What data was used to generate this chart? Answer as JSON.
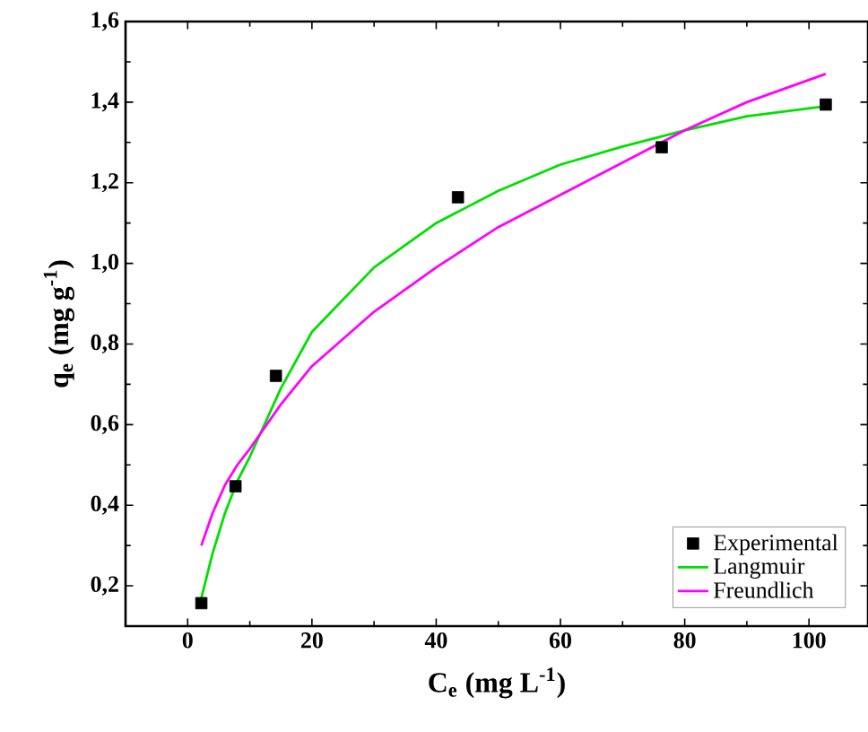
{
  "chart_data": {
    "type": "scatter",
    "xlabel": "C$_{e}$ (mg L$^{-1}$)",
    "ylabel": "q$_{e}$ (mg g$^{-1}$)",
    "xlim": [
      -10,
      109.5
    ],
    "ylim": [
      0.1,
      1.6
    ],
    "xticks": [
      0,
      20,
      40,
      60,
      80,
      100
    ],
    "yticks": [
      {
        "value": 0.2,
        "label": "0,2"
      },
      {
        "value": 0.4,
        "label": "0,4"
      },
      {
        "value": 0.6,
        "label": "0,6"
      },
      {
        "value": 0.8,
        "label": "0,8"
      },
      {
        "value": 1.0,
        "label": "1,0"
      },
      {
        "value": 1.2,
        "label": "1,2"
      },
      {
        "value": 1.4,
        "label": "1,4"
      },
      {
        "value": 1.6,
        "label": "1,6"
      }
    ],
    "legend": "bottom right",
    "grid": false,
    "series": [
      {
        "name": "Experimental",
        "marker": "square",
        "color": "#000000",
        "x": [
          2.2,
          7.7,
          14.2,
          43.5,
          76.3,
          102.7
        ],
        "values": [
          0.157,
          0.447,
          0.721,
          1.164,
          1.288,
          1.394
        ]
      },
      {
        "name": "Langmuir",
        "type": "line",
        "marker": "none",
        "color": "#00e000",
        "x": [
          2.2,
          4,
          6,
          8,
          10,
          15,
          20,
          30,
          40,
          50,
          60,
          70,
          80,
          90,
          102.7
        ],
        "values": [
          0.17,
          0.28,
          0.38,
          0.46,
          0.52,
          0.69,
          0.83,
          0.99,
          1.1,
          1.18,
          1.245,
          1.29,
          1.33,
          1.365,
          1.39
        ]
      },
      {
        "name": "Freundlich",
        "type": "line",
        "marker": "none",
        "color": "#ff00ff",
        "x": [
          2.2,
          4,
          6,
          8,
          10,
          15,
          20,
          30,
          40,
          50,
          60,
          70,
          80,
          90,
          102.7
        ],
        "values": [
          0.3,
          0.38,
          0.45,
          0.5,
          0.54,
          0.65,
          0.745,
          0.88,
          0.99,
          1.09,
          1.17,
          1.25,
          1.33,
          1.4,
          1.47
        ]
      }
    ]
  }
}
